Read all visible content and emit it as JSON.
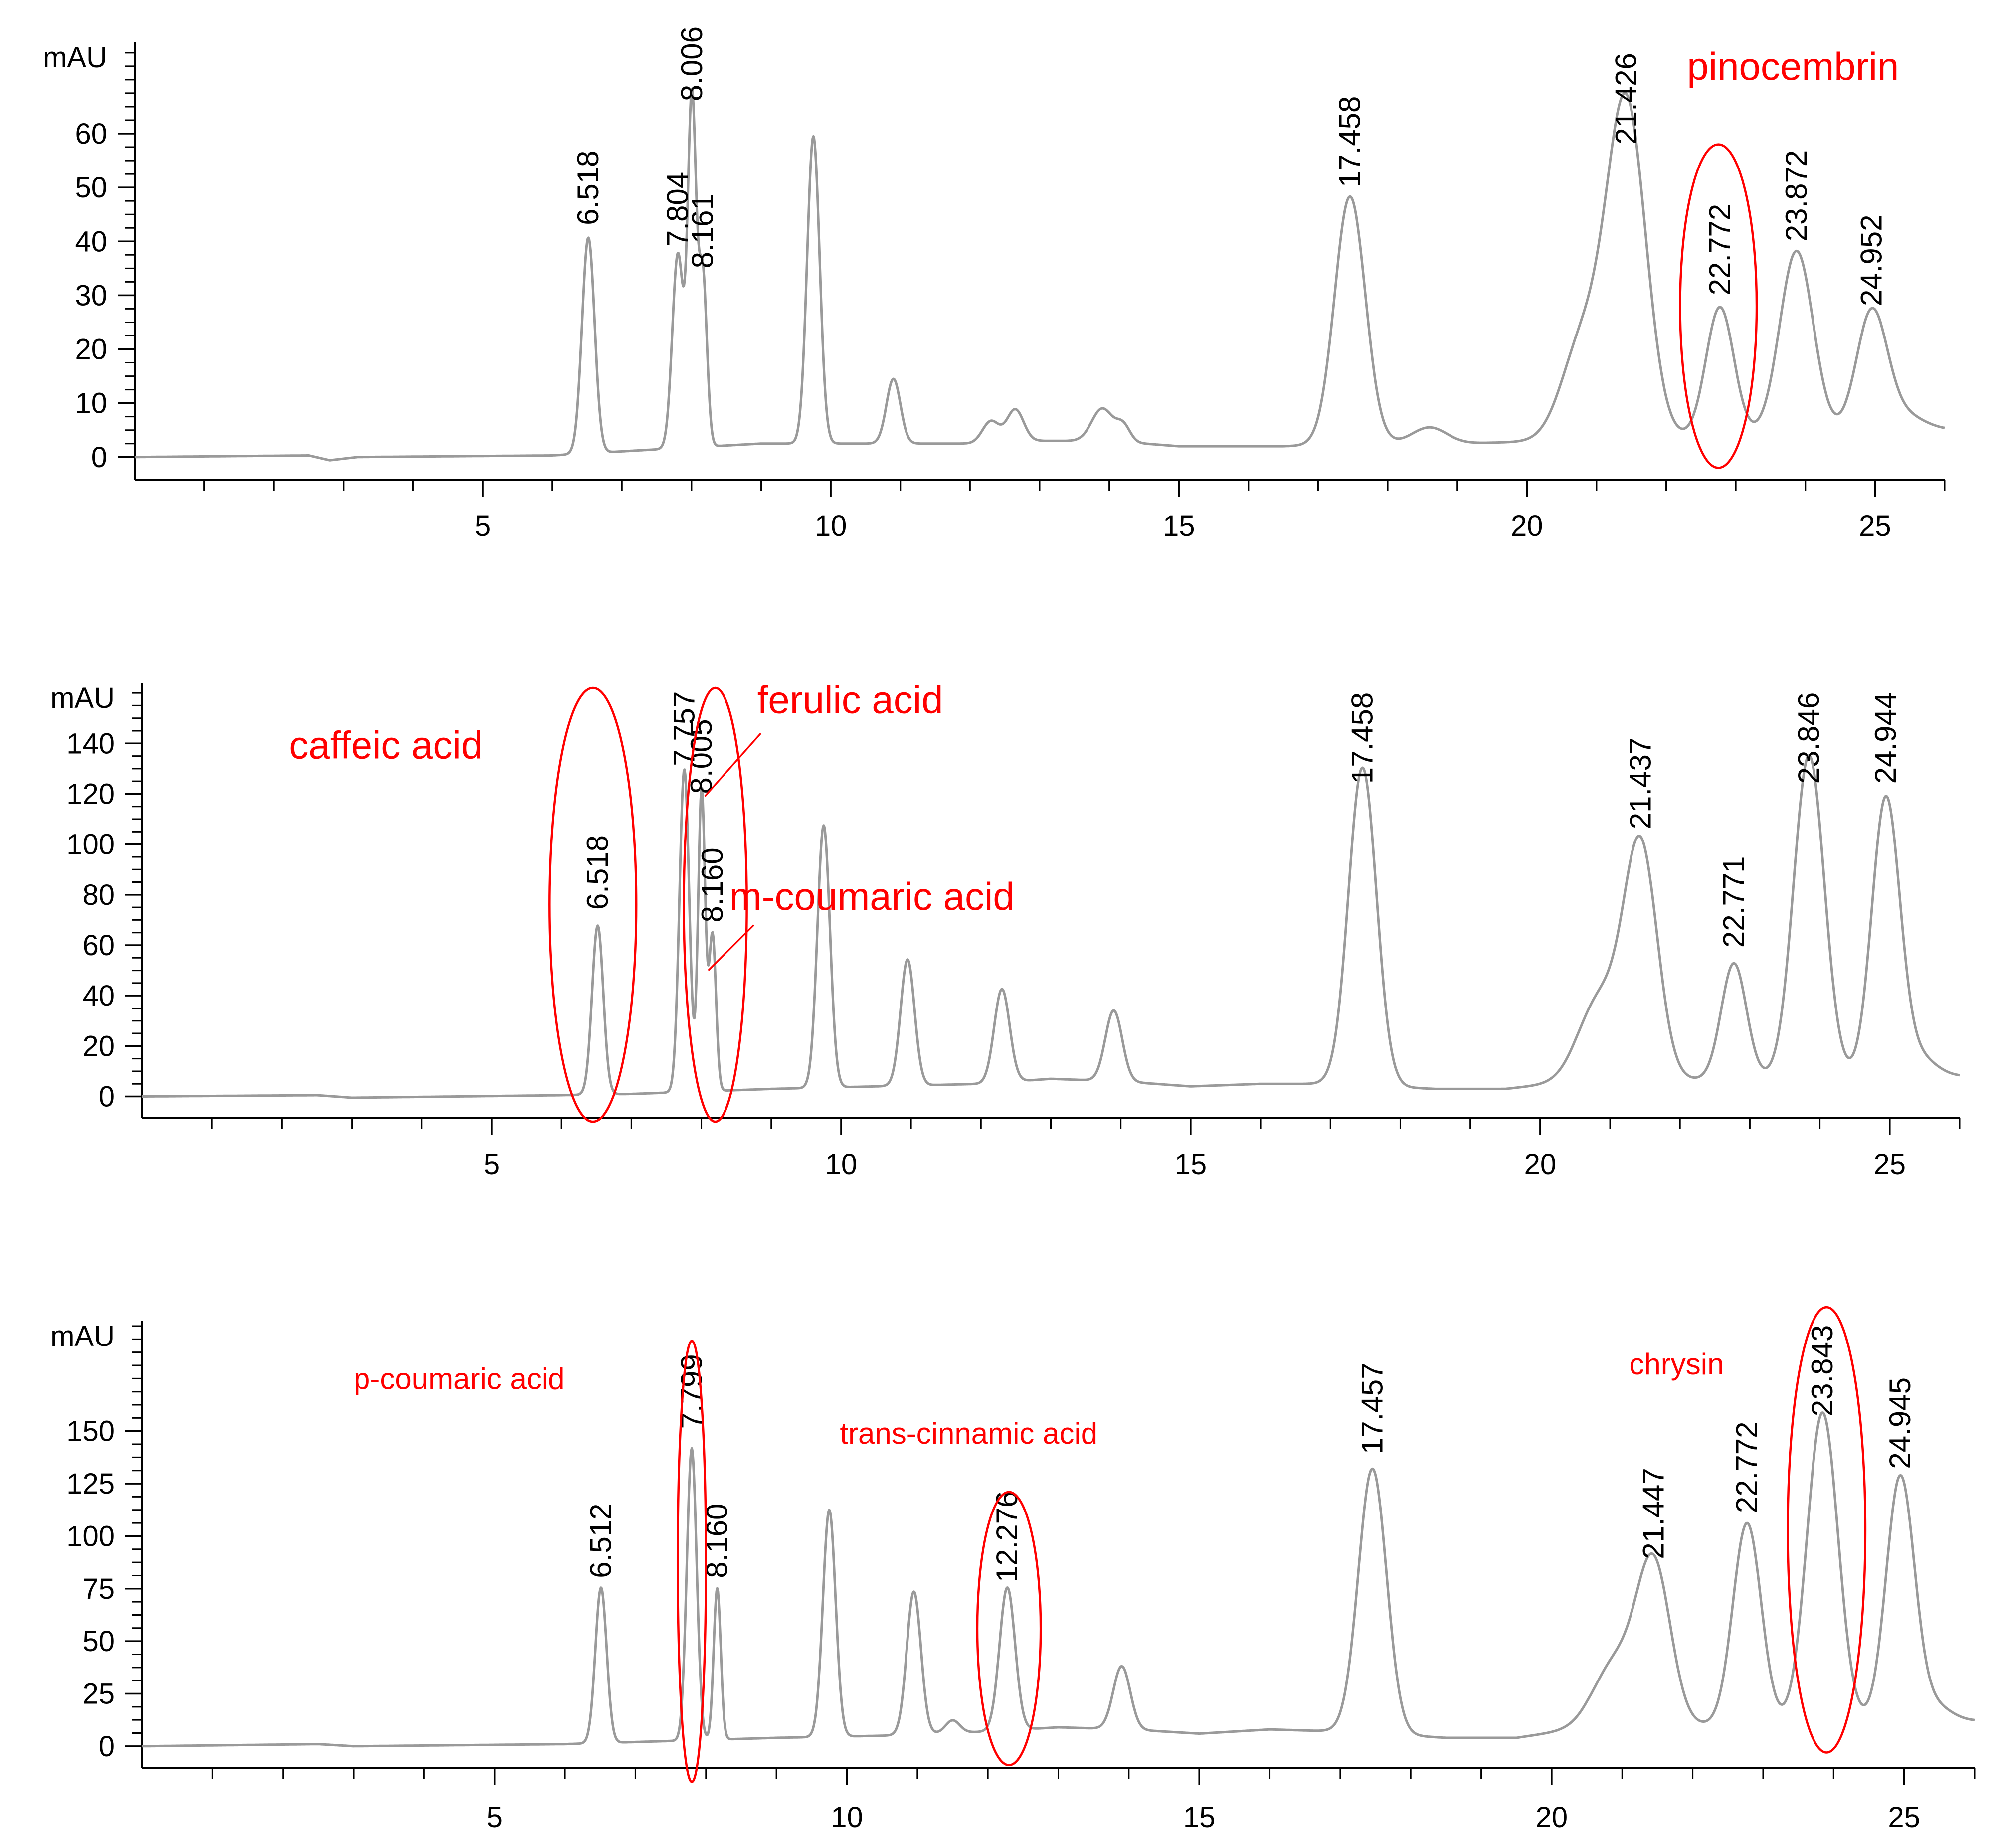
{
  "colors": {
    "trace": "#9a9a9a",
    "axis": "#000000",
    "annotation": "#ff0000",
    "background": "#ffffff"
  },
  "chart_data": [
    {
      "type": "line",
      "panel": "top",
      "title": "",
      "xlabel": "",
      "ylabel": "mAU",
      "xlim": [
        0,
        26
      ],
      "ylim": [
        -4,
        76
      ],
      "x_ticks": [
        5,
        10,
        15,
        20,
        25
      ],
      "y_ticks": [
        0,
        10,
        20,
        30,
        40,
        50,
        60
      ],
      "grid": false,
      "series": [
        {
          "name": "chromatogram",
          "baseline": [
            [
              0,
              0
            ],
            [
              2.5,
              0.3
            ],
            [
              2.8,
              -0.6
            ],
            [
              3.2,
              0
            ],
            [
              6,
              0.3
            ],
            [
              7.2,
              1.2
            ],
            [
              9,
              2.5
            ],
            [
              10.5,
              2.5
            ],
            [
              12,
              2.5
            ],
            [
              13,
              3
            ],
            [
              14,
              3
            ],
            [
              15,
              2
            ],
            [
              16.5,
              2
            ],
            [
              18,
              2.5
            ],
            [
              19,
              2.5
            ],
            [
              20.5,
              3
            ],
            [
              26,
              5
            ]
          ],
          "peaks": [
            {
              "rt": 6.518,
              "height": 40,
              "width": 0.09
            },
            {
              "rt": 7.804,
              "height": 36,
              "width": 0.08
            },
            {
              "rt": 8.006,
              "height": 64,
              "width": 0.06
            },
            {
              "rt": 8.161,
              "height": 32,
              "width": 0.06
            },
            {
              "rt": 9.75,
              "height": 57,
              "width": 0.09
            },
            {
              "rt": 10.9,
              "height": 12,
              "width": 0.1
            },
            {
              "rt": 12.3,
              "height": 4,
              "width": 0.12
            },
            {
              "rt": 12.65,
              "height": 6,
              "width": 0.12
            },
            {
              "rt": 13.9,
              "height": 6,
              "width": 0.15
            },
            {
              "rt": 14.2,
              "height": 3,
              "width": 0.1
            },
            {
              "rt": 17.458,
              "height": 46,
              "width": 0.22
            },
            {
              "rt": 18.6,
              "height": 3,
              "width": 0.25
            },
            {
              "rt": 20.8,
              "height": 18,
              "width": 0.3
            },
            {
              "rt": 21.426,
              "height": 62,
              "width": 0.28
            },
            {
              "rt": 22.772,
              "height": 24,
              "width": 0.2
            },
            {
              "rt": 23.872,
              "height": 34,
              "width": 0.24
            },
            {
              "rt": 24.952,
              "height": 22,
              "width": 0.22
            },
            {
              "rt": 25.4,
              "height": 3,
              "width": 0.3
            }
          ]
        }
      ],
      "peak_labels": [
        {
          "text": "6.518",
          "x": 6.518,
          "y": 43
        },
        {
          "text": "7.804",
          "x": 7.804,
          "y": 39
        },
        {
          "text": "8.006",
          "x": 8.006,
          "y": 66
        },
        {
          "text": "8.161",
          "x": 8.161,
          "y": 35
        },
        {
          "text": "17.458",
          "x": 17.458,
          "y": 50
        },
        {
          "text": "21.426",
          "x": 21.426,
          "y": 58
        },
        {
          "text": "22.772",
          "x": 22.772,
          "y": 30
        },
        {
          "text": "23.872",
          "x": 23.872,
          "y": 40
        },
        {
          "text": "24.952",
          "x": 24.952,
          "y": 28
        }
      ],
      "annotations": [
        {
          "text": "pinocembrin",
          "x": 22.3,
          "y": 70,
          "size": "large"
        }
      ],
      "ellipses": [
        {
          "cx": 22.75,
          "cy": 28,
          "rx": 0.55,
          "ry": 30
        }
      ],
      "leaders": []
    },
    {
      "type": "line",
      "panel": "middle",
      "title": "",
      "xlabel": "",
      "ylabel": "mAU",
      "xlim": [
        0,
        26
      ],
      "ylim": [
        -8,
        162
      ],
      "x_ticks": [
        5,
        10,
        15,
        20,
        25
      ],
      "y_ticks": [
        0,
        20,
        40,
        60,
        80,
        100,
        120,
        140
      ],
      "grid": false,
      "series": [
        {
          "name": "chromatogram",
          "baseline": [
            [
              0,
              0
            ],
            [
              2.5,
              0.5
            ],
            [
              3,
              -0.5
            ],
            [
              6,
              0.5
            ],
            [
              7,
              1
            ],
            [
              9,
              3
            ],
            [
              10.5,
              4
            ],
            [
              12,
              5
            ],
            [
              13,
              7
            ],
            [
              14,
              6
            ],
            [
              15,
              4
            ],
            [
              16,
              5
            ],
            [
              17,
              5
            ],
            [
              18.5,
              3
            ],
            [
              19.5,
              3
            ],
            [
              20.5,
              6
            ],
            [
              26,
              8
            ]
          ],
          "peaks": [
            {
              "rt": 6.518,
              "height": 67,
              "width": 0.08
            },
            {
              "rt": 7.757,
              "height": 128,
              "width": 0.07
            },
            {
              "rt": 8.005,
              "height": 120,
              "width": 0.05
            },
            {
              "rt": 8.16,
              "height": 62,
              "width": 0.05
            },
            {
              "rt": 9.75,
              "height": 104,
              "width": 0.09
            },
            {
              "rt": 10.95,
              "height": 50,
              "width": 0.1
            },
            {
              "rt": 12.3,
              "height": 37,
              "width": 0.11
            },
            {
              "rt": 13.9,
              "height": 28,
              "width": 0.12
            },
            {
              "rt": 17.458,
              "height": 126,
              "width": 0.2
            },
            {
              "rt": 20.85,
              "height": 32,
              "width": 0.3
            },
            {
              "rt": 21.437,
              "height": 92,
              "width": 0.24
            },
            {
              "rt": 22.771,
              "height": 46,
              "width": 0.18
            },
            {
              "rt": 23.846,
              "height": 128,
              "width": 0.22
            },
            {
              "rt": 24.944,
              "height": 110,
              "width": 0.2
            },
            {
              "rt": 25.4,
              "height": 8,
              "width": 0.25
            }
          ]
        }
      ],
      "peak_labels": [
        {
          "text": "6.518",
          "x": 6.518,
          "y": 74
        },
        {
          "text": "7.757",
          "x": 7.757,
          "y": 131
        },
        {
          "text": "8.005",
          "x": 8.005,
          "y": 120
        },
        {
          "text": "8.160",
          "x": 8.16,
          "y": 69
        },
        {
          "text": "17.458",
          "x": 17.458,
          "y": 124
        },
        {
          "text": "21.437",
          "x": 21.437,
          "y": 106
        },
        {
          "text": "22.771",
          "x": 22.771,
          "y": 59
        },
        {
          "text": "23.846",
          "x": 23.846,
          "y": 124
        },
        {
          "text": "24.944",
          "x": 24.944,
          "y": 124
        }
      ],
      "annotations": [
        {
          "text": "caffeic acid",
          "x": 2.1,
          "y": 134,
          "size": "large"
        },
        {
          "text": "ferulic acid",
          "x": 8.8,
          "y": 152,
          "size": "large"
        },
        {
          "text": "m-coumaric acid",
          "x": 8.4,
          "y": 74,
          "size": "large"
        }
      ],
      "ellipses": [
        {
          "cx": 6.45,
          "cy": 76,
          "rx": 0.62,
          "ry": 86
        },
        {
          "cx": 8.2,
          "cy": 76,
          "rx": 0.45,
          "ry": 86
        }
      ],
      "leaders": [
        {
          "x1": 8.85,
          "y1": 144,
          "x2": 8.05,
          "y2": 119
        },
        {
          "x1": 8.75,
          "y1": 68,
          "x2": 8.1,
          "y2": 50
        }
      ]
    },
    {
      "type": "line",
      "panel": "bottom",
      "title": "",
      "xlabel": "",
      "ylabel": "mAU",
      "xlim": [
        0,
        26
      ],
      "ylim": [
        -10,
        200
      ],
      "x_ticks": [
        5,
        10,
        15,
        20,
        25
      ],
      "y_ticks": [
        0,
        25,
        50,
        75,
        100,
        125,
        150
      ],
      "grid": false,
      "series": [
        {
          "name": "chromatogram",
          "baseline": [
            [
              0,
              0
            ],
            [
              2.5,
              1
            ],
            [
              3,
              0
            ],
            [
              6,
              1
            ],
            [
              7,
              2
            ],
            [
              9,
              4
            ],
            [
              10.5,
              5
            ],
            [
              12,
              7
            ],
            [
              13,
              9
            ],
            [
              14,
              8
            ],
            [
              15,
              6
            ],
            [
              16,
              8
            ],
            [
              17,
              7
            ],
            [
              18.5,
              4
            ],
            [
              19.5,
              4
            ],
            [
              20.5,
              9
            ],
            [
              26,
              12
            ]
          ],
          "peaks": [
            {
              "rt": 6.512,
              "height": 74,
              "width": 0.08
            },
            {
              "rt": 7.799,
              "height": 139,
              "width": 0.07
            },
            {
              "rt": 8.16,
              "height": 72,
              "width": 0.05
            },
            {
              "rt": 9.75,
              "height": 108,
              "width": 0.09
            },
            {
              "rt": 10.95,
              "height": 68,
              "width": 0.1
            },
            {
              "rt": 11.5,
              "height": 6,
              "width": 0.1
            },
            {
              "rt": 12.276,
              "height": 68,
              "width": 0.11
            },
            {
              "rt": 13.9,
              "height": 30,
              "width": 0.12
            },
            {
              "rt": 17.457,
              "height": 126,
              "width": 0.2
            },
            {
              "rt": 20.9,
              "height": 30,
              "width": 0.3
            },
            {
              "rt": 21.447,
              "height": 76,
              "width": 0.24
            },
            {
              "rt": 22.772,
              "height": 96,
              "width": 0.2
            },
            {
              "rt": 23.843,
              "height": 148,
              "width": 0.22
            },
            {
              "rt": 24.945,
              "height": 116,
              "width": 0.2
            },
            {
              "rt": 25.4,
              "height": 8,
              "width": 0.25
            }
          ]
        }
      ],
      "peak_labels": [
        {
          "text": "6.512",
          "x": 6.512,
          "y": 80
        },
        {
          "text": "7.799",
          "x": 7.799,
          "y": 151
        },
        {
          "text": "8.160",
          "x": 8.16,
          "y": 80
        },
        {
          "text": "12.276",
          "x": 12.276,
          "y": 78
        },
        {
          "text": "17.457",
          "x": 17.457,
          "y": 139
        },
        {
          "text": "21.447",
          "x": 21.447,
          "y": 89
        },
        {
          "text": "22.772",
          "x": 22.772,
          "y": 111
        },
        {
          "text": "23.843",
          "x": 23.843,
          "y": 157
        },
        {
          "text": "24.945",
          "x": 24.945,
          "y": 132
        }
      ],
      "annotations": [
        {
          "text": "p-coumaric acid",
          "x": 3.0,
          "y": 170,
          "size": "small"
        },
        {
          "text": "trans-cinnamic acid",
          "x": 9.9,
          "y": 144,
          "size": "small"
        },
        {
          "text": "chrysin",
          "x": 21.1,
          "y": 177,
          "size": "small"
        }
      ],
      "ellipses": [
        {
          "cx": 7.8,
          "cy": 88,
          "rx": 0.2,
          "ry": 105
        },
        {
          "cx": 12.3,
          "cy": 56,
          "rx": 0.45,
          "ry": 65
        },
        {
          "cx": 23.9,
          "cy": 103,
          "rx": 0.55,
          "ry": 106
        }
      ],
      "leaders": []
    }
  ]
}
